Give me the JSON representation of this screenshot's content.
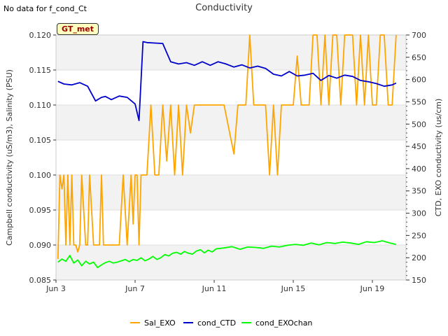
{
  "note": "No data for f_cond_Ct",
  "badge": "GT_met",
  "chart_data": {
    "type": "line",
    "title": "Conductivity",
    "ylabel_left": "Campbell conductivity (uS/m3), Salinity (PSU)",
    "ylabel_right": "CTD, EXO conductivity (us/cm)",
    "xlabel": "",
    "x_ticks": [
      "Jun 3",
      "Jun 7",
      "Jun 11",
      "Jun 15",
      "Jun 19"
    ],
    "x_tick_days": [
      3,
      7,
      11,
      15,
      19
    ],
    "xlim": [
      3,
      20.7
    ],
    "ylim_left": [
      0.085,
      0.12
    ],
    "y_ticks_left": [
      "0.085",
      "0.090",
      "0.095",
      "0.100",
      "0.105",
      "0.110",
      "0.115",
      "0.120"
    ],
    "ylim_right": [
      150,
      700
    ],
    "y_ticks_right": [
      "150",
      "200",
      "250",
      "300",
      "350",
      "400",
      "450",
      "500",
      "550",
      "600",
      "650",
      "700"
    ],
    "grid_bands": true,
    "legend_position": "bottom-center",
    "series": [
      {
        "name": "Sal_EXO",
        "axis": "left",
        "color": "#FFA500",
        "x": [
          3.1,
          3.2,
          3.3,
          3.4,
          3.5,
          3.6,
          3.7,
          3.8,
          3.9,
          4.0,
          4.1,
          4.2,
          4.3,
          4.5,
          4.6,
          4.7,
          4.9,
          5.0,
          5.2,
          5.3,
          5.4,
          5.6,
          5.8,
          6.0,
          6.2,
          6.4,
          6.6,
          6.8,
          6.9,
          7.0,
          7.1,
          7.2,
          7.3,
          7.4,
          7.5,
          7.6,
          7.8,
          8.0,
          8.2,
          8.4,
          8.6,
          8.8,
          9.0,
          9.2,
          9.4,
          9.6,
          9.8,
          10.0,
          10.2,
          10.4,
          10.6,
          10.8,
          11.0,
          11.5,
          12.0,
          12.2,
          12.4,
          12.6,
          12.8,
          13.0,
          13.2,
          13.4,
          13.6,
          13.8,
          14.0,
          14.2,
          14.4,
          14.6,
          14.8,
          15.0,
          15.2,
          15.4,
          15.6,
          15.8,
          16.0,
          16.2,
          16.4,
          16.6,
          16.8,
          17.0,
          17.2,
          17.4,
          17.6,
          17.8,
          18.0,
          18.2,
          18.4,
          18.6,
          18.8,
          19.0,
          19.2,
          19.4,
          19.6,
          19.8,
          20.0,
          20.2
        ],
        "values": [
          0.088,
          0.1,
          0.098,
          0.1,
          0.09,
          0.1,
          0.09,
          0.1,
          0.09,
          0.09,
          0.089,
          0.09,
          0.1,
          0.09,
          0.09,
          0.1,
          0.09,
          0.09,
          0.09,
          0.1,
          0.09,
          0.09,
          0.09,
          0.09,
          0.09,
          0.1,
          0.09,
          0.1,
          0.093,
          0.1,
          0.1,
          0.09,
          0.1,
          0.1,
          0.1,
          0.1,
          0.11,
          0.1,
          0.1,
          0.11,
          0.102,
          0.11,
          0.1,
          0.11,
          0.1,
          0.11,
          0.106,
          0.11,
          0.11,
          0.11,
          0.11,
          0.11,
          0.11,
          0.11,
          0.103,
          0.11,
          0.11,
          0.11,
          0.12,
          0.11,
          0.11,
          0.11,
          0.11,
          0.1,
          0.11,
          0.1,
          0.11,
          0.11,
          0.11,
          0.11,
          0.117,
          0.11,
          0.11,
          0.11,
          0.12,
          0.12,
          0.11,
          0.12,
          0.11,
          0.12,
          0.12,
          0.11,
          0.12,
          0.12,
          0.12,
          0.11,
          0.12,
          0.11,
          0.12,
          0.11,
          0.11,
          0.12,
          0.12,
          0.11,
          0.11,
          0.12
        ]
      },
      {
        "name": "cond_CTD",
        "axis": "right",
        "color": "#0000CC",
        "x": [
          3.1,
          3.4,
          3.8,
          4.2,
          4.6,
          5.0,
          5.3,
          5.5,
          5.8,
          6.2,
          6.6,
          7.0,
          7.2,
          7.4,
          7.6,
          8.0,
          8.4,
          8.8,
          9.2,
          9.6,
          10.0,
          10.4,
          10.8,
          11.2,
          11.6,
          12.0,
          12.4,
          12.8,
          13.2,
          13.6,
          14.0,
          14.4,
          14.8,
          15.2,
          15.6,
          16.0,
          16.4,
          16.8,
          17.2,
          17.6,
          18.0,
          18.4,
          18.8,
          19.2,
          19.6,
          20.0,
          20.2
        ],
        "values": [
          596,
          590,
          588,
          593,
          585,
          552,
          560,
          562,
          555,
          563,
          560,
          545,
          508,
          685,
          683,
          682,
          681,
          640,
          635,
          638,
          632,
          640,
          632,
          640,
          635,
          628,
          633,
          626,
          630,
          625,
          612,
          608,
          618,
          608,
          610,
          614,
          598,
          609,
          603,
          610,
          607,
          598,
          595,
          591,
          585,
          588,
          592
        ]
      },
      {
        "name": "cond_EXOchan",
        "axis": "right",
        "color": "#00FF00",
        "x": [
          3.1,
          3.3,
          3.5,
          3.7,
          3.9,
          4.1,
          4.3,
          4.5,
          4.7,
          4.9,
          5.1,
          5.3,
          5.5,
          5.7,
          5.9,
          6.1,
          6.3,
          6.5,
          6.7,
          6.9,
          7.1,
          7.3,
          7.5,
          7.7,
          7.9,
          8.1,
          8.3,
          8.5,
          8.7,
          8.9,
          9.1,
          9.3,
          9.5,
          9.7,
          9.9,
          10.1,
          10.3,
          10.5,
          10.7,
          10.9,
          11.1,
          11.5,
          11.9,
          12.3,
          12.7,
          13.1,
          13.5,
          13.9,
          14.3,
          14.7,
          15.1,
          15.5,
          15.9,
          16.3,
          16.7,
          17.1,
          17.5,
          17.9,
          18.3,
          18.7,
          19.1,
          19.5,
          19.9,
          20.2
        ],
        "values": [
          190,
          197,
          192,
          205,
          188,
          195,
          182,
          192,
          186,
          190,
          178,
          184,
          189,
          192,
          188,
          190,
          193,
          196,
          191,
          196,
          194,
          200,
          193,
          197,
          203,
          196,
          200,
          207,
          204,
          210,
          212,
          208,
          214,
          210,
          208,
          215,
          218,
          211,
          217,
          213,
          220,
          222,
          225,
          219,
          224,
          223,
          221,
          226,
          224,
          228,
          230,
          228,
          233,
          229,
          234,
          232,
          235,
          233,
          230,
          236,
          234,
          238,
          233,
          230
        ]
      }
    ]
  }
}
